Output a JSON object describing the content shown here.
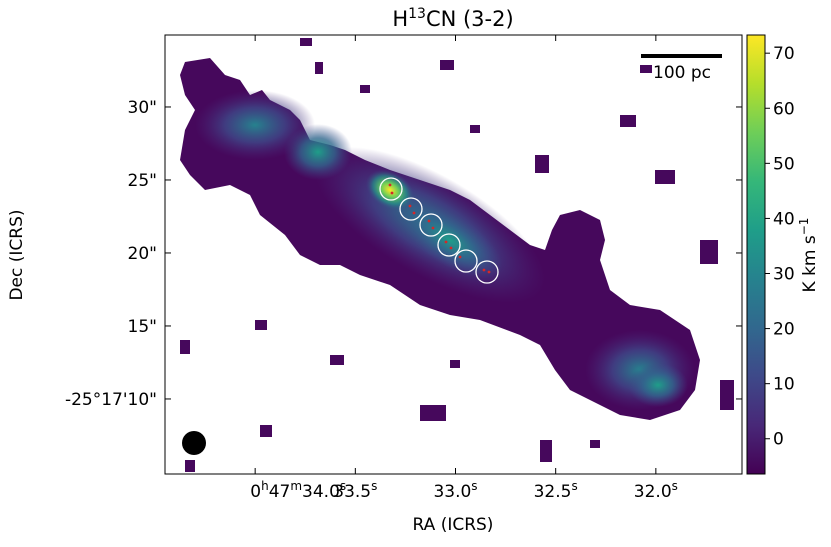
{
  "chart_data": {
    "type": "image",
    "title": [
      "H",
      "13",
      "CN (3-2)"
    ],
    "xlabel": "RA (ICRS)",
    "ylabel": "Dec (ICRS)",
    "xlim": [
      34.45,
      31.57
    ],
    "xticks": [
      {
        "value": 34.0,
        "label": "0h47m34.0s"
      },
      {
        "value": 33.5,
        "label": "33.5s"
      },
      {
        "value": 33.0,
        "label": "33.0s"
      },
      {
        "value": 32.5,
        "label": "32.5s"
      },
      {
        "value": 32.0,
        "label": "32.0s"
      }
    ],
    "ylim": [
      34.93,
      4.86
    ],
    "yticks": [
      {
        "value": 10,
        "label": "-25°17'10\""
      },
      {
        "value": 15,
        "label": "15\""
      },
      {
        "value": 20,
        "label": "20\""
      },
      {
        "value": 25,
        "label": "25\""
      },
      {
        "value": 30,
        "label": "30\""
      }
    ],
    "colorbar": {
      "label": [
        "K km s",
        "−1"
      ],
      "lim": [
        -6.4,
        73.3
      ],
      "ticks": [
        0,
        10,
        20,
        30,
        40,
        50,
        60,
        70
      ],
      "colormap": "viridis"
    },
    "scalebar": "100 pc"
  }
}
